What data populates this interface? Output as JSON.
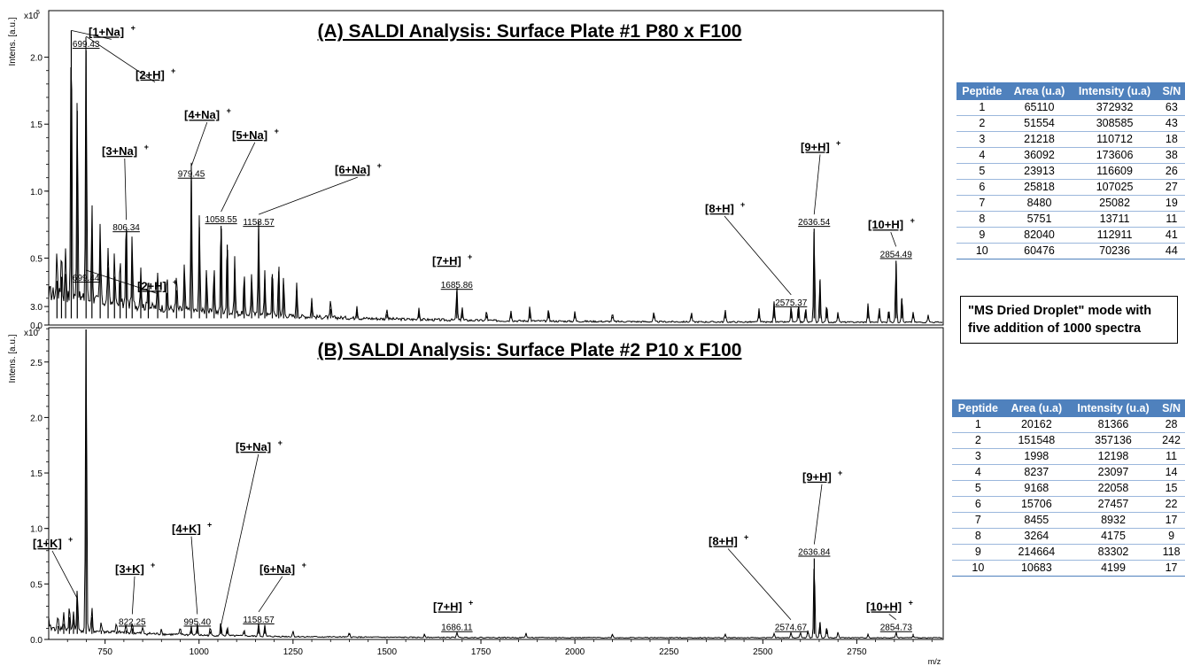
{
  "chart_data": [
    {
      "type": "line",
      "title": "(A) SALDI Analysis: Surface Plate #1 P80 x F100",
      "ylabel": "Intens. [a.u.]",
      "yscale_label": "x10",
      "yscale_exp": "5",
      "xlabel": "m/z",
      "xlim": [
        600,
        2980
      ],
      "ylim": [
        0,
        2.1
      ],
      "yticks": [
        "0.0",
        "0.5",
        "1.0",
        "1.5",
        "2.0"
      ],
      "ytick_values": [
        0,
        0.5,
        1.0,
        1.5,
        2.0
      ],
      "peaks": [
        {
          "mz": 622,
          "y": 0.33
        },
        {
          "mz": 634,
          "y": 0.36
        },
        {
          "mz": 645,
          "y": 0.38
        },
        {
          "mz": 660,
          "y": 2.2
        },
        {
          "mz": 676,
          "y": 1.6
        },
        {
          "mz": 699.43,
          "y": 2.05
        },
        {
          "mz": 715,
          "y": 0.72
        },
        {
          "mz": 737,
          "y": 0.58
        },
        {
          "mz": 758,
          "y": 0.43
        },
        {
          "mz": 775,
          "y": 0.36
        },
        {
          "mz": 790,
          "y": 0.32
        },
        {
          "mz": 806.34,
          "y": 0.68
        },
        {
          "mz": 822,
          "y": 0.5
        },
        {
          "mz": 845,
          "y": 0.3
        },
        {
          "mz": 865,
          "y": 0.26
        },
        {
          "mz": 890,
          "y": 0.25
        },
        {
          "mz": 915,
          "y": 0.24
        },
        {
          "mz": 940,
          "y": 0.26
        },
        {
          "mz": 961,
          "y": 0.34
        },
        {
          "mz": 979.45,
          "y": 1.08
        },
        {
          "mz": 1001,
          "y": 0.73
        },
        {
          "mz": 1020,
          "y": 0.35
        },
        {
          "mz": 1040,
          "y": 0.36
        },
        {
          "mz": 1058.55,
          "y": 0.74
        },
        {
          "mz": 1075,
          "y": 0.6
        },
        {
          "mz": 1095,
          "y": 0.42
        },
        {
          "mz": 1120,
          "y": 0.3
        },
        {
          "mz": 1140,
          "y": 0.32
        },
        {
          "mz": 1158.57,
          "y": 0.72
        },
        {
          "mz": 1175,
          "y": 0.34
        },
        {
          "mz": 1195,
          "y": 0.38
        },
        {
          "mz": 1212,
          "y": 0.4
        },
        {
          "mz": 1225,
          "y": 0.3
        },
        {
          "mz": 1260,
          "y": 0.26
        },
        {
          "mz": 1300,
          "y": 0.14
        },
        {
          "mz": 1350,
          "y": 0.12
        },
        {
          "mz": 1420,
          "y": 0.1
        },
        {
          "mz": 1500,
          "y": 0.08
        },
        {
          "mz": 1585,
          "y": 0.09
        },
        {
          "mz": 1685.86,
          "y": 0.25
        },
        {
          "mz": 1700,
          "y": 0.1
        },
        {
          "mz": 1765,
          "y": 0.07
        },
        {
          "mz": 1830,
          "y": 0.08
        },
        {
          "mz": 1880,
          "y": 0.11
        },
        {
          "mz": 1930,
          "y": 0.09
        },
        {
          "mz": 2000,
          "y": 0.07
        },
        {
          "mz": 2100,
          "y": 0.06
        },
        {
          "mz": 2210,
          "y": 0.07
        },
        {
          "mz": 2310,
          "y": 0.07
        },
        {
          "mz": 2400,
          "y": 0.09
        },
        {
          "mz": 2490,
          "y": 0.1
        },
        {
          "mz": 2530,
          "y": 0.16
        },
        {
          "mz": 2575.37,
          "y": 0.12
        },
        {
          "mz": 2595,
          "y": 0.14
        },
        {
          "mz": 2614,
          "y": 0.11
        },
        {
          "mz": 2636.54,
          "y": 0.72
        },
        {
          "mz": 2652,
          "y": 0.33
        },
        {
          "mz": 2670,
          "y": 0.13
        },
        {
          "mz": 2700,
          "y": 0.08
        },
        {
          "mz": 2780,
          "y": 0.14
        },
        {
          "mz": 2810,
          "y": 0.11
        },
        {
          "mz": 2835,
          "y": 0.1
        },
        {
          "mz": 2854.49,
          "y": 0.48
        },
        {
          "mz": 2870,
          "y": 0.2
        },
        {
          "mz": 2900,
          "y": 0.08
        },
        {
          "mz": 2940,
          "y": 0.06
        }
      ],
      "annotations": [
        {
          "label": "[1+Na]",
          "charge": "+",
          "mz": 660,
          "y": 2.2,
          "tx": 100,
          "ty": 2.16,
          "mass": ""
        },
        {
          "label": "[2+H]",
          "charge": "+",
          "mz": 699.43,
          "y": 2.05,
          "tx": 153,
          "ty": 1.84,
          "mass": "699.43"
        },
        {
          "label": "[3+Na]",
          "charge": "+",
          "mz": 806.34,
          "y": 0.68,
          "tx": 115,
          "ty": 1.27,
          "mass": "806.34"
        },
        {
          "label": "[4+Na]",
          "charge": "+",
          "mz": 979.45,
          "y": 1.08,
          "tx": 208,
          "ty": 1.54,
          "mass": "979.45"
        },
        {
          "label": "[5+Na]",
          "charge": "+",
          "mz": 1058.55,
          "y": 0.74,
          "tx": 262,
          "ty": 1.39,
          "mass": "1058.55"
        },
        {
          "label": "[6+Na]",
          "charge": "+",
          "mz": 1158.57,
          "y": 0.72,
          "tx": 378,
          "ty": 1.13,
          "mass": "1158.57"
        },
        {
          "label": "[7+H]",
          "charge": "+",
          "mz": 1685.86,
          "y": 0.25,
          "tx": 488,
          "ty": 0.45,
          "mass": "1685.86"
        },
        {
          "label": "[8+H]",
          "charge": "+",
          "mz": 2575.37,
          "y": 0.12,
          "tx": 796,
          "ty": 0.84,
          "mass": "2575.37"
        },
        {
          "label": "[9+H]",
          "charge": "+",
          "mz": 2636.54,
          "y": 0.72,
          "tx": 904,
          "ty": 1.3,
          "mass": "2636.54"
        },
        {
          "label": "[10+H]",
          "charge": "+",
          "mz": 2854.49,
          "y": 0.48,
          "tx": 980,
          "ty": 0.72,
          "mass": "2854.49"
        }
      ]
    },
    {
      "type": "line",
      "title": "(B) SALDI Analysis: Surface Plate #2 P10 x F100",
      "ylabel": "Intens. [a.u.]",
      "yscale_label": "x10",
      "yscale_exp": "5",
      "xlabel": "m/z",
      "xlim": [
        600,
        2980
      ],
      "ylim": [
        0,
        3.3
      ],
      "yticks": [
        "0.0",
        "0.5",
        "1.0",
        "1.5",
        "2.0",
        "2.5",
        "3.0"
      ],
      "ytick_values": [
        0,
        0.5,
        1.0,
        1.5,
        2.0,
        2.5,
        3.0
      ],
      "xticks": [
        "750",
        "1000",
        "1250",
        "1500",
        "1750",
        "2000",
        "2250",
        "2500",
        "2750"
      ],
      "xtick_values": [
        750,
        1000,
        1250,
        1500,
        1750,
        2000,
        2250,
        2500,
        2750
      ],
      "peaks": [
        {
          "mz": 625,
          "y": 0.12
        },
        {
          "mz": 640,
          "y": 0.14
        },
        {
          "mz": 655,
          "y": 0.2
        },
        {
          "mz": 666,
          "y": 0.18
        },
        {
          "mz": 676,
          "y": 0.37
        },
        {
          "mz": 699.44,
          "y": 3.2
        },
        {
          "mz": 715,
          "y": 0.2
        },
        {
          "mz": 740,
          "y": 0.08
        },
        {
          "mz": 780,
          "y": 0.07
        },
        {
          "mz": 806,
          "y": 0.08
        },
        {
          "mz": 822.25,
          "y": 0.1
        },
        {
          "mz": 850,
          "y": 0.05
        },
        {
          "mz": 900,
          "y": 0.05
        },
        {
          "mz": 950,
          "y": 0.06
        },
        {
          "mz": 979,
          "y": 0.08
        },
        {
          "mz": 995.4,
          "y": 0.1
        },
        {
          "mz": 1030,
          "y": 0.07
        },
        {
          "mz": 1058,
          "y": 0.12
        },
        {
          "mz": 1075,
          "y": 0.08
        },
        {
          "mz": 1120,
          "y": 0.06
        },
        {
          "mz": 1158.57,
          "y": 0.12
        },
        {
          "mz": 1175,
          "y": 0.1
        },
        {
          "mz": 1250,
          "y": 0.05
        },
        {
          "mz": 1400,
          "y": 0.04
        },
        {
          "mz": 1600,
          "y": 0.03
        },
        {
          "mz": 1686.11,
          "y": 0.05
        },
        {
          "mz": 1870,
          "y": 0.04
        },
        {
          "mz": 2100,
          "y": 0.03
        },
        {
          "mz": 2400,
          "y": 0.03
        },
        {
          "mz": 2530,
          "y": 0.04
        },
        {
          "mz": 2574.67,
          "y": 0.05
        },
        {
          "mz": 2600,
          "y": 0.05
        },
        {
          "mz": 2620,
          "y": 0.07
        },
        {
          "mz": 2636.84,
          "y": 0.73
        },
        {
          "mz": 2652,
          "y": 0.15
        },
        {
          "mz": 2670,
          "y": 0.1
        },
        {
          "mz": 2700,
          "y": 0.05
        },
        {
          "mz": 2780,
          "y": 0.03
        },
        {
          "mz": 2854.73,
          "y": 0.05
        },
        {
          "mz": 2900,
          "y": 0.02
        }
      ],
      "annotations": [
        {
          "label": "[2+H]",
          "charge": "+",
          "mz": 699.44,
          "y": 3.2,
          "tx": 155,
          "ty": 3.15,
          "mass": "699.44"
        },
        {
          "label": "[1+K]",
          "charge": "+",
          "mz": 676,
          "y": 0.37,
          "tx": 37,
          "ty": 0.83,
          "mass": ""
        },
        {
          "label": "[3+K]",
          "charge": "+",
          "mz": 822.25,
          "y": 0.1,
          "tx": 130,
          "ty": 0.6,
          "mass": "822.25"
        },
        {
          "label": "[4+K]",
          "charge": "+",
          "mz": 995.4,
          "y": 0.1,
          "tx": 194,
          "ty": 0.96,
          "mass": "995.40"
        },
        {
          "label": "[5+Na]",
          "charge": "+",
          "mz": 1058,
          "y": 0.12,
          "tx": 266,
          "ty": 1.7,
          "mass": ""
        },
        {
          "label": "[6+Na]",
          "charge": "+",
          "mz": 1158.57,
          "y": 0.12,
          "tx": 293,
          "ty": 0.6,
          "mass": "1158.57"
        },
        {
          "label": "[7+H]",
          "charge": "+",
          "mz": 1686.11,
          "y": 0.05,
          "tx": 489,
          "ty": 0.26,
          "mass": "1686.11"
        },
        {
          "label": "[8+H]",
          "charge": "+",
          "mz": 2574.67,
          "y": 0.05,
          "tx": 800,
          "ty": 0.85,
          "mass": "2574.67"
        },
        {
          "label": "[9+H]",
          "charge": "+",
          "mz": 2636.84,
          "y": 0.73,
          "tx": 906,
          "ty": 1.43,
          "mass": "2636.84"
        },
        {
          "label": "[10+H]",
          "charge": "+",
          "mz": 2854.73,
          "y": 0.05,
          "tx": 978,
          "ty": 0.26,
          "mass": "2854.73"
        }
      ]
    }
  ],
  "table_a": {
    "headers": [
      "Peptide",
      "Area (u.a)",
      "Intensity (u.a)",
      "S/N"
    ],
    "rows": [
      [
        "1",
        "65110",
        "372932",
        "63"
      ],
      [
        "2",
        "51554",
        "308585",
        "43"
      ],
      [
        "3",
        "21218",
        "110712",
        "18"
      ],
      [
        "4",
        "36092",
        "173606",
        "38"
      ],
      [
        "5",
        "23913",
        "116609",
        "26"
      ],
      [
        "6",
        "25818",
        "107025",
        "27"
      ],
      [
        "7",
        "8480",
        "25082",
        "19"
      ],
      [
        "8",
        "5751",
        "13711",
        "11"
      ],
      [
        "9",
        "82040",
        "112911",
        "41"
      ],
      [
        "10",
        "60476",
        "70236",
        "44"
      ]
    ]
  },
  "table_b": {
    "headers": [
      "Peptide",
      "Area (u.a)",
      "Intensity (u.a)",
      "S/N"
    ],
    "rows": [
      [
        "1",
        "20162",
        "81366",
        "28"
      ],
      [
        "2",
        "151548",
        "357136",
        "242"
      ],
      [
        "3",
        "1998",
        "12198",
        "11"
      ],
      [
        "4",
        "8237",
        "23097",
        "14"
      ],
      [
        "5",
        "9168",
        "22058",
        "15"
      ],
      [
        "6",
        "15706",
        "27457",
        "22"
      ],
      [
        "7",
        "8455",
        "8932",
        "17"
      ],
      [
        "8",
        "3264",
        "4175",
        "9"
      ],
      [
        "9",
        "214664",
        "83302",
        "118"
      ],
      [
        "10",
        "10683",
        "4199",
        "17"
      ]
    ]
  },
  "note": {
    "line1": "\"MS Dried Droplet\" mode with",
    "line2": "five addition of 1000 spectra"
  },
  "colors": {
    "table_header": "#4f81bd",
    "trace": "#000000"
  }
}
